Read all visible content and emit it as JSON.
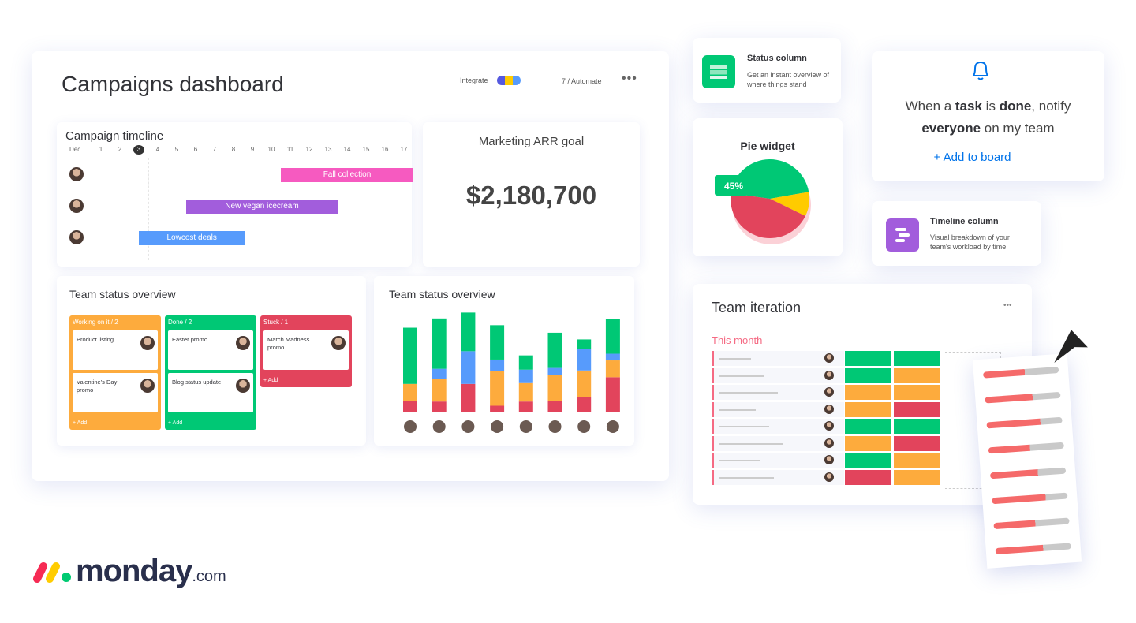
{
  "dashboard": {
    "title": "Campaigns dashboard",
    "integrate": "Integrate",
    "automate": "7 / Automate"
  },
  "timeline": {
    "title": "Campaign timeline",
    "month": "Dec",
    "days": [
      1,
      2,
      3,
      4,
      5,
      6,
      7,
      8,
      9,
      10,
      11,
      12,
      13,
      14,
      15,
      16,
      17
    ],
    "today": 3,
    "bars": [
      {
        "label": "Fall collection",
        "start": 10.5,
        "end": 17.5,
        "color": "#f65ac0"
      },
      {
        "label": "New vegan icecream",
        "start": 5.5,
        "end": 13.5,
        "color": "#a25ddc"
      },
      {
        "label": "Lowcost deals",
        "start": 3,
        "end": 8.6,
        "color": "#579bfc"
      }
    ]
  },
  "arr": {
    "title": "Marketing ARR goal",
    "value": "$2,180,700"
  },
  "kanban": {
    "title": "Team status overview",
    "add": "+ Add",
    "columns": [
      {
        "title": "Working on it / 2",
        "color": "#fdab3d",
        "cards": [
          "Product listing",
          "Valentine's Day promo"
        ]
      },
      {
        "title": "Done / 2",
        "color": "#00c875",
        "cards": [
          "Easter promo",
          "Blog status update"
        ]
      },
      {
        "title": "Stuck / 1",
        "color": "#e2445c",
        "cards": [
          "March Madness promo"
        ]
      }
    ]
  },
  "status_chart": {
    "title": "Team status overview",
    "series": [
      {
        "color": "#e2445c",
        "values": [
          14,
          13,
          34,
          8,
          13,
          14,
          18,
          42
        ]
      },
      {
        "color": "#fdab3d",
        "values": [
          20,
          27,
          0,
          41,
          22,
          31,
          32,
          20
        ]
      },
      {
        "color": "#579bfc",
        "values": [
          0,
          12,
          39,
          14,
          16,
          8,
          26,
          8
        ]
      },
      {
        "color": "#00c875",
        "values": [
          67,
          60,
          46,
          41,
          17,
          42,
          11,
          41
        ]
      }
    ],
    "ylim": [
      0,
      125
    ]
  },
  "status_widget": {
    "title": "Status column",
    "desc": "Get an instant overview of where things stand"
  },
  "pie": {
    "title": "Pie widget",
    "values": [
      45,
      10,
      45
    ],
    "colors": [
      "#00c875",
      "#ffcb00",
      "#e2445c"
    ],
    "label": "45%"
  },
  "notify": {
    "parts": [
      "When a ",
      "task",
      " is ",
      "done",
      ", notify ",
      "everyone",
      " on my team"
    ],
    "action": "+ Add to board"
  },
  "timeline_widget": {
    "title": "Timeline column",
    "desc": "Visual breakdown of your team's workload by time"
  },
  "iteration": {
    "title": "Team iteration",
    "subtitle": "This month",
    "rows": [
      [
        "#00c875",
        "#00c875"
      ],
      [
        "#00c875",
        "#fdab3d"
      ],
      [
        "#fdab3d",
        "#fdab3d"
      ],
      [
        "#fdab3d",
        "#e2445c"
      ],
      [
        "#00c875",
        "#00c875"
      ],
      [
        "#fdab3d",
        "#e2445c"
      ],
      [
        "#00c875",
        "#fdab3d"
      ],
      [
        "#e2445c",
        "#fdab3d"
      ]
    ]
  },
  "logo": {
    "name": "monday",
    "suffix": ".com"
  }
}
